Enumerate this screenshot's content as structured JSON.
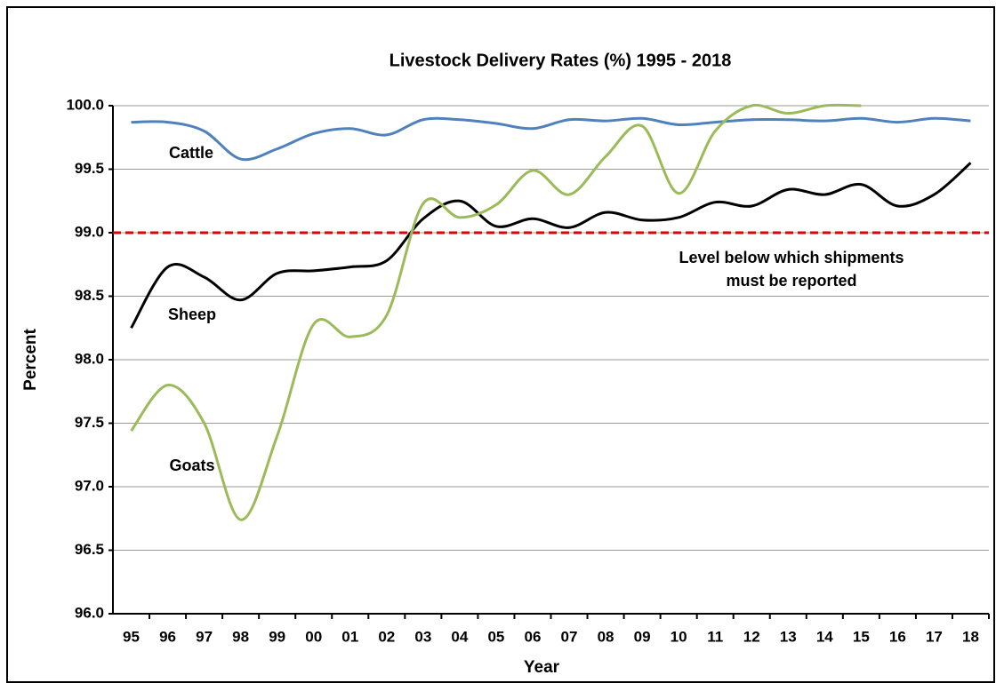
{
  "chart_data": {
    "type": "line",
    "title": "Livestock Delivery Rates (%) 1995 - 2018",
    "x_label": "Year",
    "y_label": "Percent",
    "categories": [
      "95",
      "96",
      "97",
      "98",
      "99",
      "00",
      "01",
      "02",
      "03",
      "04",
      "05",
      "06",
      "07",
      "08",
      "09",
      "10",
      "11",
      "12",
      "13",
      "14",
      "15",
      "16",
      "17",
      "18"
    ],
    "series": [
      {
        "name": "Cattle",
        "color": "#4f81bd",
        "values": [
          99.87,
          99.87,
          99.8,
          99.58,
          99.66,
          99.78,
          99.82,
          99.77,
          99.89,
          99.89,
          99.86,
          99.82,
          99.89,
          99.88,
          99.9,
          99.85,
          99.87,
          99.89,
          99.89,
          99.88,
          99.9,
          99.87,
          99.9,
          99.88
        ]
      },
      {
        "name": "Sheep",
        "color": "#000000",
        "values": [
          98.25,
          98.73,
          98.65,
          98.47,
          98.68,
          98.7,
          98.73,
          98.78,
          99.11,
          99.25,
          99.05,
          99.11,
          99.04,
          99.16,
          99.1,
          99.12,
          99.24,
          99.21,
          99.34,
          99.3,
          99.38,
          99.21,
          99.3,
          99.55
        ]
      },
      {
        "name": "Goats",
        "color": "#9bbb59",
        "values": [
          97.44,
          97.8,
          97.5,
          96.74,
          97.4,
          98.28,
          98.18,
          98.35,
          99.23,
          99.12,
          99.22,
          99.49,
          99.3,
          99.6,
          99.84,
          99.31,
          99.8,
          100.0,
          99.94,
          100.0,
          100.0,
          null,
          null,
          null
        ]
      }
    ],
    "reference_line": {
      "value": 99,
      "color": "#e00000",
      "label": [
        "Level below which shipments",
        "must be reported"
      ]
    },
    "ylim": [
      96,
      100
    ],
    "yticks": [
      {
        "value": 96,
        "label": "96.0"
      },
      {
        "value": 96.5,
        "label": "96.5"
      },
      {
        "value": 97,
        "label": "97.0"
      },
      {
        "value": 97.5,
        "label": "97.5"
      },
      {
        "value": 98,
        "label": "98.0"
      },
      {
        "value": 98.5,
        "label": "98.5"
      },
      {
        "value": 99,
        "label": "99.0"
      },
      {
        "value": 99.5,
        "label": "99.5"
      },
      {
        "value": 100,
        "label": "100.0"
      }
    ],
    "grid": true
  }
}
